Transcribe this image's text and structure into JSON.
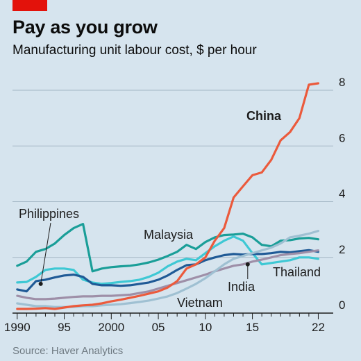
{
  "header": {
    "title": "Pay as you grow",
    "subtitle": "Manufacturing unit labour cost, $ per hour"
  },
  "footer": {
    "source": "Source: Haver Analytics"
  },
  "chart_data": {
    "type": "line",
    "title": "Pay as you grow",
    "subtitle": "Manufacturing unit labour cost, $ per hour",
    "xlabel": "",
    "ylabel": "",
    "xlim": [
      1989.5,
      2023
    ],
    "ylim": [
      0,
      8
    ],
    "x_ticks": [
      1990,
      1991,
      1992,
      1993,
      1994,
      1995,
      1996,
      1997,
      1998,
      1999,
      2000,
      2001,
      2002,
      2003,
      2004,
      2005,
      2006,
      2007,
      2008,
      2009,
      2010,
      2011,
      2012,
      2013,
      2014,
      2015,
      2016,
      2017,
      2018,
      2019,
      2020,
      2021,
      2022
    ],
    "x_tick_labels": [
      {
        "x": 1990,
        "label": "1990"
      },
      {
        "x": 1995,
        "label": "95"
      },
      {
        "x": 2000,
        "label": "2000"
      },
      {
        "x": 2005,
        "label": "05"
      },
      {
        "x": 2010,
        "label": "10"
      },
      {
        "x": 2015,
        "label": "15"
      },
      {
        "x": 2022,
        "label": "22"
      }
    ],
    "y_ticks": [
      0,
      2,
      4,
      6,
      8
    ],
    "y_tick_labels": [
      "0",
      "2",
      "4",
      "6",
      "8"
    ],
    "grid": true,
    "series": [
      {
        "name": "Philippines",
        "color": "#1a9e98",
        "x": [
          1990,
          1991,
          1992,
          1993,
          1994,
          1995,
          1996,
          1997,
          1998,
          1999,
          2000,
          2001,
          2002,
          2003,
          2004,
          2005,
          2006,
          2007,
          2008,
          2009,
          2010,
          2011,
          2012,
          2013,
          2014,
          2015,
          2016,
          2017,
          2018,
          2019,
          2020,
          2021,
          2022
        ],
        "values": [
          1.7,
          1.85,
          2.2,
          2.3,
          2.5,
          2.8,
          3.05,
          3.2,
          1.5,
          1.6,
          1.65,
          1.68,
          1.7,
          1.75,
          1.82,
          1.92,
          2.05,
          2.2,
          2.45,
          2.3,
          2.55,
          2.72,
          2.8,
          2.82,
          2.85,
          2.72,
          2.45,
          2.4,
          2.6,
          2.62,
          2.68,
          2.7,
          2.65
        ]
      },
      {
        "name": "Malaysia",
        "color": "#3ec8d4",
        "x": [
          1990,
          1991,
          1992,
          1993,
          1994,
          1995,
          1996,
          1997,
          1998,
          1999,
          2000,
          2001,
          2002,
          2003,
          2004,
          2005,
          2006,
          2007,
          2008,
          2009,
          2010,
          2011,
          2012,
          2013,
          2014,
          2015,
          2016,
          2017,
          2018,
          2019,
          2020,
          2021,
          2022
        ],
        "values": [
          1.1,
          1.12,
          1.3,
          1.55,
          1.6,
          1.6,
          1.55,
          1.2,
          1.1,
          1.05,
          1.08,
          1.12,
          1.15,
          1.2,
          1.3,
          1.45,
          1.68,
          1.85,
          1.95,
          1.9,
          2.15,
          2.4,
          2.6,
          2.75,
          2.6,
          2.15,
          1.75,
          1.8,
          1.85,
          1.9,
          2.0,
          2.0,
          1.95
        ]
      },
      {
        "name": "Thailand",
        "color": "#1f5a96",
        "x": [
          1990,
          1991,
          1992,
          1993,
          1994,
          1995,
          1996,
          1997,
          1998,
          1999,
          2000,
          2001,
          2002,
          2003,
          2004,
          2005,
          2006,
          2007,
          2008,
          2009,
          2010,
          2011,
          2012,
          2013,
          2014,
          2015,
          2016,
          2017,
          2018,
          2019,
          2020,
          2021,
          2022
        ],
        "values": [
          0.85,
          0.78,
          1.15,
          1.2,
          1.28,
          1.35,
          1.38,
          1.3,
          1.05,
          1.0,
          1.0,
          0.98,
          1.0,
          1.05,
          1.1,
          1.2,
          1.35,
          1.55,
          1.72,
          1.75,
          1.9,
          2.0,
          2.08,
          2.12,
          2.1,
          2.12,
          2.12,
          2.15,
          2.2,
          2.18,
          2.22,
          2.26,
          2.2
        ]
      },
      {
        "name": "India",
        "color": "#9e8fa8",
        "x": [
          1990,
          1991,
          1992,
          1993,
          1994,
          1995,
          1996,
          1997,
          1998,
          1999,
          2000,
          2001,
          2002,
          2003,
          2004,
          2005,
          2006,
          2007,
          2008,
          2009,
          2010,
          2011,
          2012,
          2013,
          2014,
          2015,
          2016,
          2017,
          2018,
          2019,
          2020,
          2021,
          2022
        ],
        "values": [
          0.62,
          0.55,
          0.5,
          0.5,
          0.52,
          0.55,
          0.58,
          0.6,
          0.6,
          0.62,
          0.62,
          0.64,
          0.66,
          0.72,
          0.78,
          0.88,
          0.98,
          1.08,
          1.18,
          1.28,
          1.38,
          1.5,
          1.6,
          1.7,
          1.75,
          1.85,
          1.92,
          2.0,
          2.08,
          2.12,
          2.15,
          2.2,
          2.25
        ]
      },
      {
        "name": "Vietnam",
        "color": "#9fc0d2",
        "x": [
          1990,
          1991,
          1992,
          1993,
          1994,
          1995,
          1996,
          1997,
          1998,
          1999,
          2000,
          2001,
          2002,
          2003,
          2004,
          2005,
          2006,
          2007,
          2008,
          2009,
          2010,
          2011,
          2012,
          2013,
          2014,
          2015,
          2016,
          2017,
          2018,
          2019,
          2020,
          2021,
          2022
        ],
        "values": [
          0.35,
          0.3,
          0.25,
          0.25,
          0.22,
          0.22,
          0.22,
          0.25,
          0.25,
          0.28,
          0.3,
          0.32,
          0.36,
          0.4,
          0.45,
          0.52,
          0.6,
          0.72,
          0.88,
          1.05,
          1.25,
          1.5,
          1.75,
          1.95,
          2.05,
          2.15,
          2.25,
          2.35,
          2.5,
          2.72,
          2.78,
          2.85,
          2.95
        ]
      },
      {
        "name": "China",
        "color": "#eb5a3c",
        "x": [
          1990,
          1991,
          1992,
          1993,
          1994,
          1995,
          1996,
          1997,
          1998,
          1999,
          2000,
          2001,
          2002,
          2003,
          2004,
          2005,
          2006,
          2007,
          2008,
          2009,
          2010,
          2011,
          2012,
          2013,
          2014,
          2015,
          2016,
          2017,
          2018,
          2019,
          2020,
          2021,
          2022
        ],
        "values": [
          0.15,
          0.15,
          0.16,
          0.18,
          0.15,
          0.2,
          0.25,
          0.28,
          0.3,
          0.35,
          0.42,
          0.48,
          0.55,
          0.62,
          0.7,
          0.78,
          0.92,
          1.15,
          1.6,
          1.75,
          2.0,
          2.6,
          3.05,
          4.15,
          4.55,
          4.95,
          5.05,
          5.5,
          6.2,
          6.5,
          7.0,
          8.2,
          8.25
        ]
      }
    ],
    "series_labels": [
      {
        "name": "Philippines",
        "text": "Philippines",
        "bold": false
      },
      {
        "name": "Malaysia",
        "text": "Malaysia",
        "bold": false
      },
      {
        "name": "Thailand",
        "text": "Thailand",
        "bold": false
      },
      {
        "name": "India",
        "text": "India",
        "bold": false
      },
      {
        "name": "Vietnam",
        "text": "Vietnam",
        "bold": false
      },
      {
        "name": "China",
        "text": "China",
        "bold": true
      }
    ]
  }
}
